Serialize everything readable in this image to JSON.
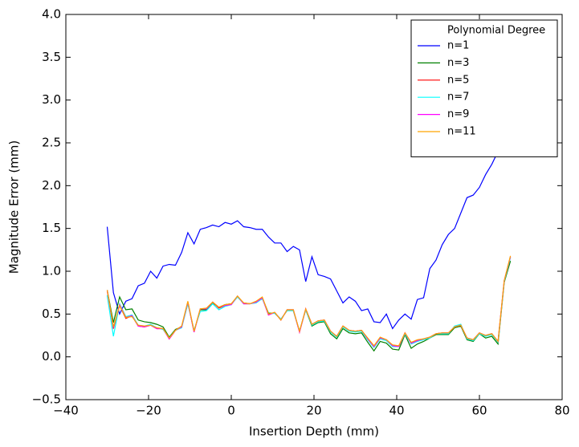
{
  "chart_data": {
    "type": "line",
    "xlabel": "Insertion Depth (mm)",
    "ylabel": "Magnitude Error (mm)",
    "legend_title": "Polynomial Degree",
    "legend": "upper right",
    "xlim": [
      -40,
      80
    ],
    "ylim": [
      -0.5,
      4.0
    ],
    "xticks": [
      {
        "value": -40,
        "label": "−40"
      },
      {
        "value": -20,
        "label": "−20"
      },
      0,
      20,
      40,
      60,
      80
    ],
    "yticks": [
      {
        "value": -0.5,
        "label": "−0.5"
      },
      {
        "value": 0,
        "label": "0.0"
      },
      {
        "value": 0.5,
        "label": "0.5"
      },
      {
        "value": 1,
        "label": "1.0"
      },
      {
        "value": 1.5,
        "label": "1.5"
      },
      {
        "value": 2,
        "label": "2.0"
      },
      {
        "value": 2.5,
        "label": "2.5"
      },
      {
        "value": 3,
        "label": "3.0"
      },
      {
        "value": 3.5,
        "label": "3.5"
      },
      {
        "value": 4,
        "label": "4.0"
      }
    ],
    "x": [
      -30,
      -28.5,
      -27,
      -25.5,
      -24,
      -22.5,
      -21,
      -19.5,
      -18,
      -16.5,
      -15,
      -13.5,
      -12,
      -10.5,
      -9,
      -7.5,
      -6,
      -4.5,
      -3,
      -1.5,
      0,
      1.5,
      3,
      4.5,
      6,
      7.5,
      9,
      10.5,
      12,
      13.5,
      15,
      16.5,
      18,
      19.5,
      21,
      22.5,
      24,
      25.5,
      27,
      28.5,
      30,
      31.5,
      33,
      34.5,
      36,
      37.5,
      39,
      40.5,
      42,
      43.5,
      45,
      46.5,
      48,
      49.5,
      51,
      52.5,
      54,
      55.5,
      57,
      58.5,
      60,
      61.5,
      63,
      64.5,
      66,
      67.5
    ],
    "series": [
      {
        "name": "n=1",
        "color": "#0000ff",
        "values": [
          1.52,
          0.75,
          0.5,
          0.65,
          0.68,
          0.83,
          0.86,
          1.0,
          0.92,
          1.06,
          1.08,
          1.07,
          1.22,
          1.45,
          1.32,
          1.49,
          1.51,
          1.54,
          1.52,
          1.57,
          1.55,
          1.59,
          1.52,
          1.51,
          1.49,
          1.49,
          1.4,
          1.33,
          1.33,
          1.23,
          1.29,
          1.25,
          0.88,
          1.17,
          0.96,
          0.94,
          0.91,
          0.77,
          0.63,
          0.7,
          0.65,
          0.54,
          0.56,
          0.41,
          0.4,
          0.5,
          0.33,
          0.43,
          0.5,
          0.44,
          0.67,
          0.69,
          1.03,
          1.13,
          1.31,
          1.43,
          1.5,
          1.68,
          1.86,
          1.89,
          1.98,
          2.13,
          2.25,
          2.4,
          2.6,
          null
        ]
      },
      {
        "name": "n=3",
        "color": "#008000",
        "values": [
          0.78,
          0.4,
          0.7,
          0.55,
          0.56,
          0.43,
          0.41,
          0.4,
          0.38,
          0.35,
          0.23,
          0.32,
          0.35,
          0.63,
          0.3,
          0.55,
          0.55,
          0.63,
          0.58,
          0.61,
          0.62,
          0.7,
          0.63,
          0.62,
          0.64,
          0.69,
          0.51,
          0.51,
          0.44,
          0.54,
          0.54,
          0.3,
          0.55,
          0.36,
          0.4,
          0.41,
          0.27,
          0.21,
          0.33,
          0.28,
          0.27,
          0.28,
          0.17,
          0.07,
          0.18,
          0.16,
          0.09,
          0.08,
          0.26,
          0.1,
          0.15,
          0.18,
          0.22,
          0.26,
          0.26,
          0.26,
          0.34,
          0.36,
          0.2,
          0.18,
          0.27,
          0.22,
          0.24,
          0.15,
          0.87,
          1.12
        ]
      },
      {
        "name": "n=5",
        "color": "#ff0000",
        "values": [
          0.78,
          0.33,
          0.6,
          0.45,
          0.48,
          0.36,
          0.35,
          0.37,
          0.33,
          0.33,
          0.21,
          0.31,
          0.35,
          0.64,
          0.29,
          0.56,
          0.56,
          0.64,
          0.57,
          0.6,
          0.61,
          0.71,
          0.62,
          0.62,
          0.64,
          0.69,
          0.49,
          0.52,
          0.43,
          0.55,
          0.55,
          0.29,
          0.56,
          0.38,
          0.42,
          0.43,
          0.3,
          0.24,
          0.36,
          0.31,
          0.3,
          0.31,
          0.21,
          0.12,
          0.22,
          0.2,
          0.13,
          0.12,
          0.28,
          0.16,
          0.19,
          0.21,
          0.23,
          0.27,
          0.28,
          0.28,
          0.35,
          0.37,
          0.22,
          0.2,
          0.28,
          0.25,
          0.27,
          0.18,
          0.89,
          1.17
        ]
      },
      {
        "name": "n=7",
        "color": "#00ffff",
        "values": [
          0.72,
          0.24,
          0.62,
          0.47,
          0.49,
          0.37,
          0.36,
          0.38,
          0.34,
          0.32,
          0.22,
          0.31,
          0.34,
          0.62,
          0.31,
          0.53,
          0.54,
          0.62,
          0.55,
          0.59,
          0.61,
          0.7,
          0.62,
          0.62,
          0.63,
          0.68,
          0.5,
          0.51,
          0.44,
          0.54,
          0.54,
          0.3,
          0.55,
          0.37,
          0.41,
          0.42,
          0.29,
          0.23,
          0.35,
          0.3,
          0.29,
          0.3,
          0.2,
          0.11,
          0.21,
          0.19,
          0.12,
          0.12,
          0.27,
          0.15,
          0.18,
          0.2,
          0.22,
          0.27,
          0.27,
          0.27,
          0.36,
          0.38,
          0.21,
          0.19,
          0.27,
          0.24,
          0.26,
          0.17,
          0.88,
          1.16
        ]
      },
      {
        "name": "n=9",
        "color": "#ff00ff",
        "values": [
          0.77,
          0.34,
          0.61,
          0.46,
          0.48,
          0.36,
          0.35,
          0.37,
          0.33,
          0.33,
          0.21,
          0.31,
          0.35,
          0.64,
          0.29,
          0.56,
          0.56,
          0.64,
          0.58,
          0.6,
          0.61,
          0.71,
          0.62,
          0.62,
          0.64,
          0.69,
          0.49,
          0.52,
          0.43,
          0.55,
          0.55,
          0.29,
          0.56,
          0.38,
          0.42,
          0.43,
          0.3,
          0.24,
          0.36,
          0.31,
          0.3,
          0.31,
          0.21,
          0.12,
          0.22,
          0.2,
          0.13,
          0.12,
          0.28,
          0.16,
          0.19,
          0.21,
          0.23,
          0.27,
          0.28,
          0.28,
          0.35,
          0.37,
          0.22,
          0.2,
          0.28,
          0.25,
          0.27,
          0.18,
          0.89,
          1.17
        ]
      },
      {
        "name": "n=11",
        "color": "#ffa500",
        "values": [
          0.78,
          0.35,
          0.6,
          0.46,
          0.47,
          0.37,
          0.36,
          0.37,
          0.34,
          0.33,
          0.22,
          0.31,
          0.36,
          0.65,
          0.3,
          0.56,
          0.57,
          0.64,
          0.58,
          0.61,
          0.62,
          0.71,
          0.63,
          0.62,
          0.65,
          0.7,
          0.5,
          0.52,
          0.43,
          0.55,
          0.55,
          0.3,
          0.56,
          0.38,
          0.42,
          0.43,
          0.3,
          0.24,
          0.36,
          0.31,
          0.3,
          0.31,
          0.22,
          0.13,
          0.23,
          0.2,
          0.14,
          0.13,
          0.28,
          0.17,
          0.2,
          0.21,
          0.23,
          0.27,
          0.28,
          0.28,
          0.35,
          0.37,
          0.22,
          0.2,
          0.28,
          0.25,
          0.27,
          0.18,
          0.89,
          1.18
        ]
      }
    ]
  }
}
